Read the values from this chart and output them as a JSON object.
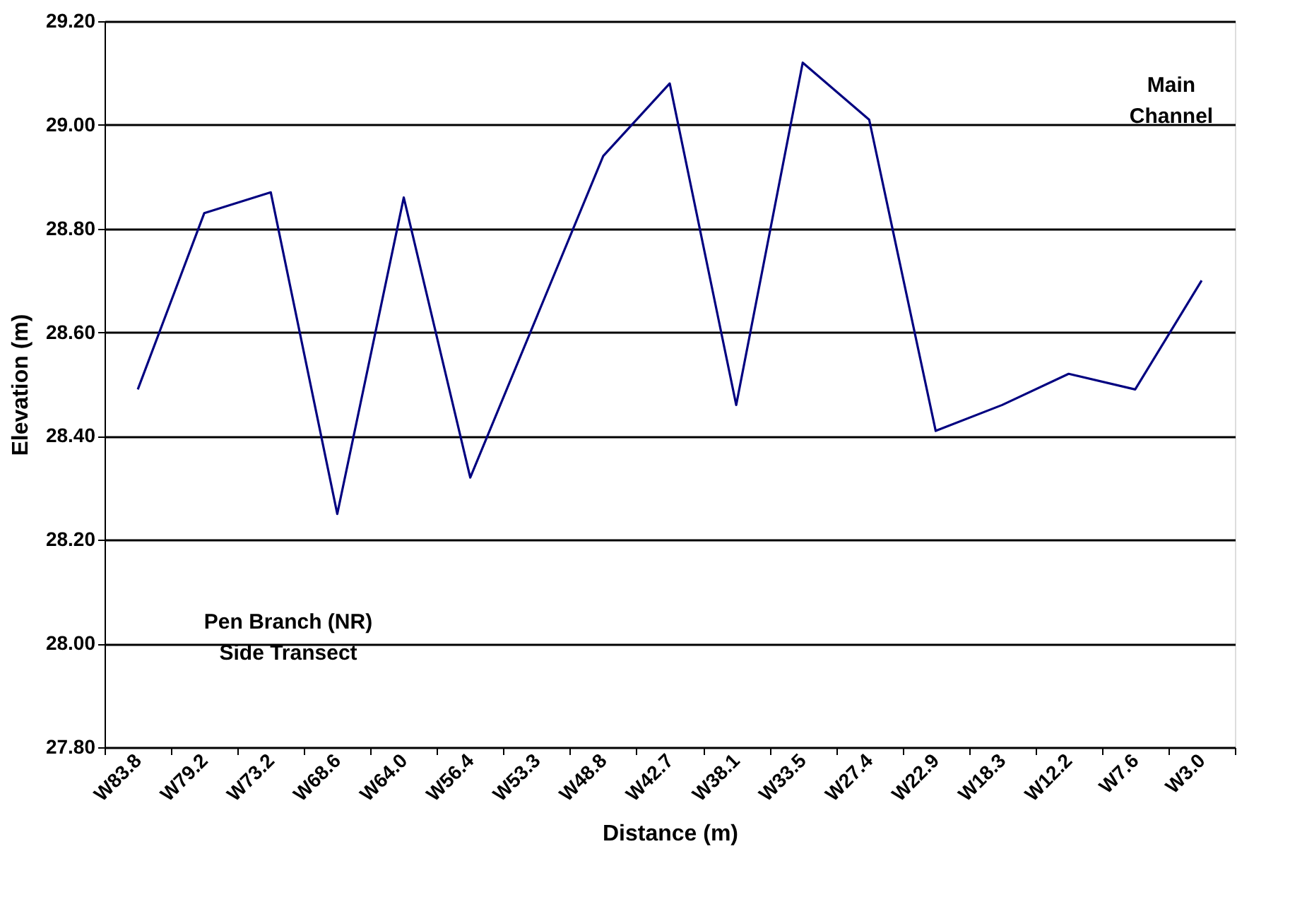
{
  "chart_data": {
    "type": "line",
    "xlabel": "Distance (m)",
    "ylabel": "Elevation (m)",
    "categories": [
      "W83.8",
      "W79.2",
      "W73.2",
      "W68.6",
      "W64.0",
      "W56.4",
      "W53.3",
      "W48.8",
      "W42.7",
      "W38.1",
      "W33.5",
      "W27.4",
      "W22.9",
      "W18.3",
      "W12.2",
      "W7.6",
      "W3.0"
    ],
    "series": [
      {
        "color": "#000080",
        "values": [
          28.49,
          28.83,
          28.87,
          28.25,
          28.86,
          28.32,
          28.63,
          28.94,
          29.08,
          28.46,
          29.12,
          29.01,
          28.41,
          28.46,
          28.52,
          28.49,
          28.7
        ]
      }
    ],
    "ylim": [
      27.8,
      29.2
    ],
    "yticks": [
      {
        "value": 27.8,
        "label": "27.80"
      },
      {
        "value": 28.0,
        "label": "28.00"
      },
      {
        "value": 28.2,
        "label": "28.20"
      },
      {
        "value": 28.4,
        "label": "28.40"
      },
      {
        "value": 28.6,
        "label": "28.60"
      },
      {
        "value": 28.8,
        "label": "28.80"
      },
      {
        "value": 29.0,
        "label": "29.00"
      },
      {
        "value": 29.2,
        "label": "29.20"
      }
    ],
    "grid": "y",
    "legend": false,
    "marker": "none",
    "line_style": "solid",
    "annotations": [
      "Main\nChannel",
      "Pen Branch (NR)\nSide Transect"
    ]
  }
}
